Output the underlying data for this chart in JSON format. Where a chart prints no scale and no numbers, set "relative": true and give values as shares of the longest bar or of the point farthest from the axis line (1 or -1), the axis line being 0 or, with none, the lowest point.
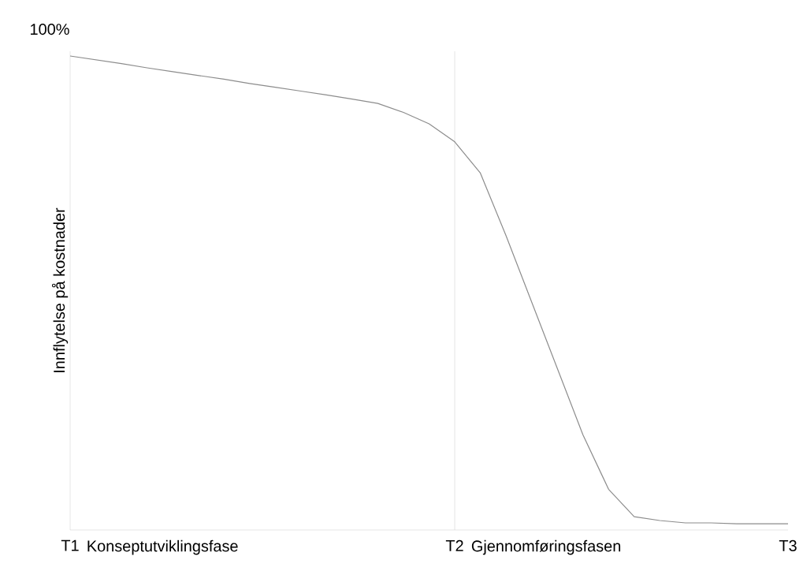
{
  "chart_data": {
    "type": "line",
    "relative": true,
    "ylabel": "Innflytelse på kostnader",
    "categories": [
      "T1",
      null,
      null,
      null,
      null,
      null,
      null,
      null,
      null,
      null,
      null,
      null,
      null,
      null,
      null,
      "T2",
      null,
      null,
      null,
      null,
      null,
      null,
      null,
      null,
      null,
      null,
      null,
      null,
      "T3"
    ],
    "series": [
      {
        "color": "#8c8c8c",
        "values": [
          1.0,
          0.992,
          0.984,
          0.975,
          0.967,
          0.959,
          0.951,
          0.942,
          0.934,
          0.926,
          0.918,
          0.909,
          0.9,
          0.881,
          0.857,
          0.819,
          0.753,
          0.621,
          0.481,
          0.341,
          0.201,
          0.086,
          0.028,
          0.02,
          0.015,
          0.015,
          0.013,
          0.013,
          0.013
        ]
      }
    ],
    "ref_lines": [
      {
        "axis": "x",
        "value": "T2",
        "color": "#bfbfbf"
      }
    ],
    "annotations": [
      "100%",
      "Konseptutviklingsfase",
      "Gjennomføringsfasen"
    ]
  }
}
